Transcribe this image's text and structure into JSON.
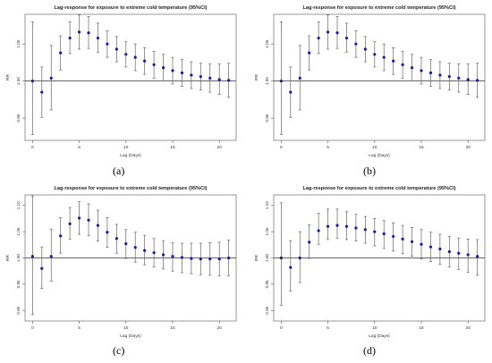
{
  "chart_data": [
    {
      "panel": "a",
      "type": "scatter",
      "title": "Lag-response for exposure to extreme cold temperature (95%CI)",
      "xlabel": "Lag (Days)",
      "ylabel": "RR",
      "caption": "(a)",
      "xlim": [
        -0.8,
        21.8
      ],
      "ylim": [
        0.92,
        1.09
      ],
      "xticks": [
        0,
        5,
        10,
        15,
        20
      ],
      "yticks": [
        0.95,
        1.0,
        1.05
      ],
      "ytick_labels": [
        "0.95",
        "1.00",
        "1.05"
      ],
      "reference_line": 1.0,
      "x": [
        0,
        1,
        2,
        3,
        4,
        5,
        6,
        7,
        8,
        9,
        10,
        11,
        12,
        13,
        14,
        15,
        16,
        17,
        18,
        19,
        20,
        21
      ],
      "rr": [
        1.0,
        0.985,
        1.004,
        1.038,
        1.058,
        1.066,
        1.065,
        1.058,
        1.05,
        1.043,
        1.036,
        1.032,
        1.027,
        1.022,
        1.018,
        1.014,
        1.011,
        1.008,
        1.006,
        1.004,
        1.002,
        1.001
      ],
      "lower": [
        0.928,
        0.951,
        0.961,
        1.015,
        1.037,
        1.043,
        1.044,
        1.039,
        1.032,
        1.026,
        1.019,
        1.014,
        1.009,
        1.004,
        1.0,
        0.996,
        0.993,
        0.99,
        0.988,
        0.985,
        0.982,
        0.978
      ],
      "upper": [
        1.08,
        1.019,
        1.048,
        1.061,
        1.08,
        1.089,
        1.087,
        1.078,
        1.068,
        1.06,
        1.053,
        1.05,
        1.045,
        1.04,
        1.036,
        1.032,
        1.029,
        1.026,
        1.024,
        1.023,
        1.023,
        1.024
      ]
    },
    {
      "panel": "b",
      "type": "scatter",
      "title": "Lag-response for exposure to extreme cold temperature (95%CI)",
      "xlabel": "Lag (Days)",
      "ylabel": "RR",
      "caption": "(b)",
      "xlim": [
        -0.8,
        21.8
      ],
      "ylim": [
        0.92,
        1.09
      ],
      "xticks": [
        0,
        5,
        10,
        15,
        20
      ],
      "yticks": [
        0.95,
        1.0,
        1.05
      ],
      "ytick_labels": [
        "0.95",
        "1.00",
        "1.05"
      ],
      "reference_line": 1.0,
      "x": [
        0,
        1,
        2,
        3,
        4,
        5,
        6,
        7,
        8,
        9,
        10,
        11,
        12,
        13,
        14,
        15,
        16,
        17,
        18,
        19,
        20,
        21
      ],
      "rr": [
        1.0,
        0.985,
        1.004,
        1.038,
        1.058,
        1.066,
        1.065,
        1.058,
        1.05,
        1.043,
        1.036,
        1.032,
        1.027,
        1.022,
        1.018,
        1.014,
        1.011,
        1.008,
        1.006,
        1.004,
        1.002,
        1.001
      ],
      "lower": [
        0.928,
        0.951,
        0.961,
        1.015,
        1.037,
        1.043,
        1.044,
        1.039,
        1.032,
        1.026,
        1.019,
        1.014,
        1.009,
        1.004,
        1.0,
        0.996,
        0.993,
        0.99,
        0.988,
        0.985,
        0.982,
        0.978
      ],
      "upper": [
        1.08,
        1.019,
        1.048,
        1.061,
        1.08,
        1.089,
        1.087,
        1.078,
        1.068,
        1.06,
        1.053,
        1.05,
        1.045,
        1.04,
        1.036,
        1.032,
        1.029,
        1.026,
        1.024,
        1.023,
        1.023,
        1.024
      ]
    },
    {
      "panel": "c",
      "type": "scatter",
      "title": "Lag-response for exposure to extreme cold temperature (95%CI)",
      "xlabel": "Lag (Days)",
      "ylabel": "RR",
      "caption": "(c)",
      "xlim": [
        -0.8,
        21.8
      ],
      "ylim": [
        0.88,
        1.12
      ],
      "xticks": [
        0,
        5,
        10,
        15,
        20
      ],
      "yticks": [
        0.9,
        0.95,
        1.0,
        1.05,
        1.1
      ],
      "ytick_labels": [
        "0.90",
        "0.95",
        "1.00",
        "1.05",
        "1.10"
      ],
      "reference_line": 1.0,
      "x": [
        0,
        1,
        2,
        3,
        4,
        5,
        6,
        7,
        8,
        9,
        10,
        11,
        12,
        13,
        14,
        15,
        16,
        17,
        18,
        19,
        20,
        21
      ],
      "rr": [
        1.003,
        0.98,
        1.003,
        1.042,
        1.065,
        1.076,
        1.072,
        1.062,
        1.049,
        1.037,
        1.027,
        1.02,
        1.014,
        1.01,
        1.006,
        1.003,
        1.001,
        0.999,
        0.998,
        0.998,
        0.998,
        1.0
      ],
      "lower": [
        0.892,
        0.942,
        0.956,
        1.009,
        1.036,
        1.045,
        1.042,
        1.032,
        1.02,
        1.009,
        0.999,
        0.992,
        0.987,
        0.983,
        0.979,
        0.975,
        0.972,
        0.97,
        0.968,
        0.967,
        0.966,
        0.966
      ],
      "upper": [
        1.118,
        1.021,
        1.055,
        1.077,
        1.096,
        1.107,
        1.103,
        1.091,
        1.077,
        1.064,
        1.054,
        1.049,
        1.043,
        1.037,
        1.032,
        1.029,
        1.028,
        1.028,
        1.028,
        1.029,
        1.03,
        1.034
      ]
    },
    {
      "panel": "d",
      "type": "scatter",
      "title": "Lag-response for exposure to extreme cold temperature (95%CI)",
      "xlabel": "Lag (Days)",
      "ylabel": "RR",
      "caption": "(d)",
      "xlim": [
        -0.8,
        21.8
      ],
      "ylim": [
        0.88,
        1.12
      ],
      "xticks": [
        0,
        5,
        10,
        15,
        20
      ],
      "yticks": [
        0.9,
        0.95,
        1.0,
        1.05,
        1.1
      ],
      "ytick_labels": [
        "0.90",
        "0.95",
        "1.00",
        "1.05",
        "1.10"
      ],
      "reference_line": 1.0,
      "x": [
        0,
        1,
        2,
        3,
        4,
        5,
        6,
        7,
        8,
        9,
        10,
        11,
        12,
        13,
        14,
        15,
        16,
        17,
        18,
        19,
        20,
        21
      ],
      "rr": [
        1.0,
        0.982,
        1.0,
        1.03,
        1.052,
        1.06,
        1.062,
        1.06,
        1.057,
        1.054,
        1.05,
        1.046,
        1.041,
        1.036,
        1.031,
        1.026,
        1.021,
        1.017,
        1.012,
        1.009,
        1.006,
        1.003
      ],
      "lower": [
        0.91,
        0.937,
        0.953,
        0.999,
        1.026,
        1.035,
        1.037,
        1.035,
        1.032,
        1.028,
        1.023,
        1.018,
        1.013,
        1.008,
        1.003,
        0.998,
        0.993,
        0.988,
        0.983,
        0.978,
        0.973,
        0.967
      ],
      "upper": [
        1.105,
        1.033,
        1.05,
        1.063,
        1.085,
        1.093,
        1.093,
        1.088,
        1.083,
        1.079,
        1.075,
        1.071,
        1.067,
        1.062,
        1.058,
        1.054,
        1.049,
        1.045,
        1.041,
        1.038,
        1.036,
        1.035
      ]
    }
  ]
}
